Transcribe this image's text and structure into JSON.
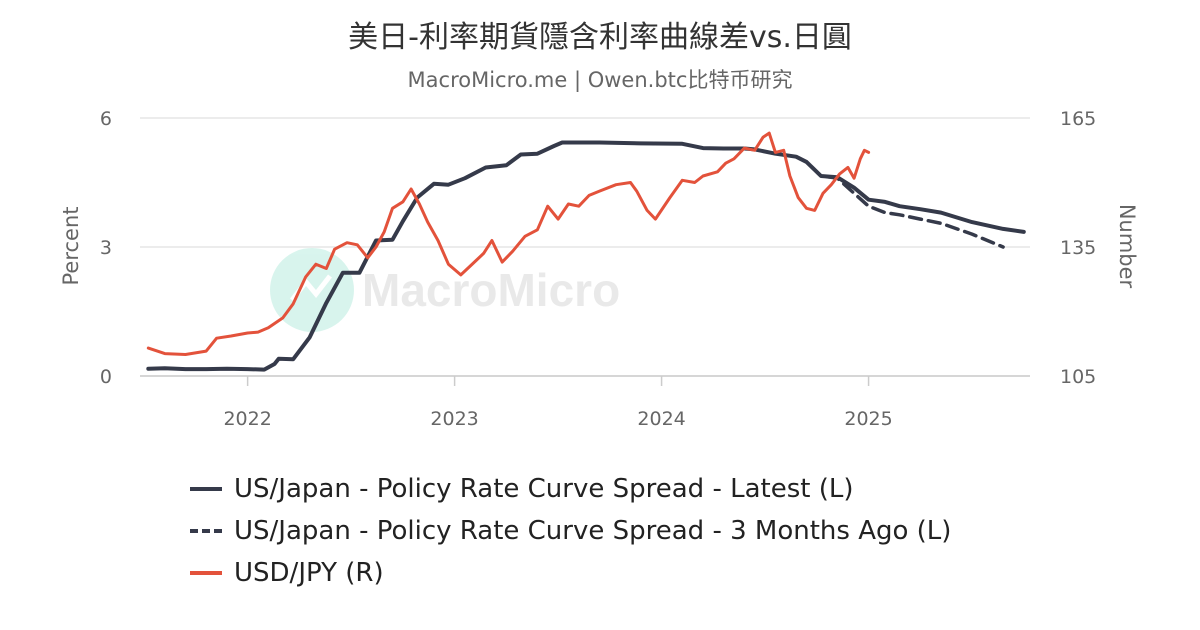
{
  "title": "美日-利率期貨隱含利率曲線差vs.日圓",
  "subtitle": "MacroMicro.me | Owen.btc比特币研究",
  "watermark": "MacroMicro",
  "colors": {
    "latest": "#353a4a",
    "months_ago": "#353a4a",
    "usdjpy": "#e3523b",
    "grid": "#e6e6e6",
    "axis_text": "#666666"
  },
  "legend": [
    {
      "label": "US/Japan - Policy Rate Curve Spread - Latest (L)",
      "style": "solid",
      "color": "#353a4a"
    },
    {
      "label": "US/Japan - Policy Rate Curve Spread - 3 Months Ago (L)",
      "style": "dashed",
      "color": "#353a4a"
    },
    {
      "label": "USD/JPY (R)",
      "style": "solid",
      "color": "#e3523b"
    }
  ],
  "chart_data": {
    "type": "line",
    "ylabel_left": "Percent",
    "ylabel_right": "Number",
    "ylim_left": [
      0,
      6
    ],
    "ylim_right": [
      105,
      165
    ],
    "yticks_left": [
      "0",
      "3",
      "6"
    ],
    "yticks_right": [
      "105",
      "135",
      "165"
    ],
    "xlim": [
      2021.48,
      2025.78
    ],
    "xticks": [
      {
        "x": 2022,
        "label": "2022"
      },
      {
        "x": 2023,
        "label": "2023"
      },
      {
        "x": 2024,
        "label": "2024"
      },
      {
        "x": 2025,
        "label": "2025"
      }
    ],
    "series": [
      {
        "name": "US/Japan - Policy Rate Curve Spread - Latest (L)",
        "axis": "left",
        "x": [
          2021.52,
          2021.6,
          2021.7,
          2021.8,
          2021.9,
          2022.0,
          2022.08,
          2022.13,
          2022.15,
          2022.22,
          2022.3,
          2022.38,
          2022.46,
          2022.54,
          2022.62,
          2022.7,
          2022.75,
          2022.82,
          2022.9,
          2022.97,
          2023.05,
          2023.15,
          2023.25,
          2023.32,
          2023.4,
          2023.48,
          2023.52,
          2023.7,
          2023.9,
          2024.1,
          2024.2,
          2024.3,
          2024.4,
          2024.45,
          2024.55,
          2024.65,
          2024.7,
          2024.77,
          2024.85,
          2024.93,
          2025.0,
          2025.08,
          2025.15,
          2025.25,
          2025.35,
          2025.5,
          2025.65,
          2025.75
        ],
        "values": [
          0.17,
          0.18,
          0.16,
          0.16,
          0.17,
          0.16,
          0.15,
          0.28,
          0.4,
          0.39,
          0.9,
          1.7,
          2.4,
          2.4,
          3.15,
          3.17,
          3.6,
          4.15,
          4.47,
          4.45,
          4.6,
          4.85,
          4.9,
          5.15,
          5.17,
          5.35,
          5.43,
          5.43,
          5.41,
          5.4,
          5.3,
          5.29,
          5.29,
          5.27,
          5.17,
          5.1,
          4.98,
          4.65,
          4.62,
          4.38,
          4.1,
          4.05,
          3.95,
          3.88,
          3.8,
          3.58,
          3.42,
          3.35
        ]
      },
      {
        "name": "US/Japan - Policy Rate Curve Spread - 3 Months Ago (L)",
        "axis": "left",
        "style": "dashed",
        "x": [
          2024.65,
          2024.7,
          2024.77,
          2024.85,
          2024.93,
          2025.0,
          2025.08,
          2025.15,
          2025.25,
          2025.35,
          2025.5,
          2025.65
        ],
        "values": [
          5.1,
          4.98,
          4.65,
          4.6,
          4.25,
          3.95,
          3.8,
          3.75,
          3.65,
          3.55,
          3.3,
          3.0
        ]
      },
      {
        "name": "USD/JPY (R)",
        "axis": "right",
        "x": [
          2021.52,
          2021.6,
          2021.7,
          2021.8,
          2021.85,
          2021.92,
          2022.0,
          2022.05,
          2022.1,
          2022.17,
          2022.22,
          2022.28,
          2022.33,
          2022.38,
          2022.42,
          2022.48,
          2022.53,
          2022.58,
          2022.62,
          2022.66,
          2022.7,
          2022.75,
          2022.79,
          2022.83,
          2022.87,
          2022.92,
          2022.97,
          2023.03,
          2023.08,
          2023.14,
          2023.18,
          2023.23,
          2023.28,
          2023.34,
          2023.4,
          2023.45,
          2023.5,
          2023.55,
          2023.6,
          2023.65,
          2023.7,
          2023.78,
          2023.85,
          2023.88,
          2023.93,
          2023.97,
          2024.04,
          2024.1,
          2024.16,
          2024.2,
          2024.27,
          2024.31,
          2024.35,
          2024.4,
          2024.45,
          2024.49,
          2024.52,
          2024.55,
          2024.59,
          2024.62,
          2024.66,
          2024.7,
          2024.74,
          2024.78,
          2024.82,
          2024.86,
          2024.9,
          2024.93,
          2024.96,
          2024.98,
          2025.0
        ],
        "values": [
          111.5,
          110.2,
          110.0,
          110.8,
          113.8,
          114.3,
          115.0,
          115.2,
          116.2,
          118.5,
          121.8,
          128.0,
          131.0,
          130.0,
          134.5,
          136.0,
          135.5,
          132.5,
          135.0,
          138.5,
          144.0,
          145.5,
          148.5,
          145.0,
          140.8,
          136.5,
          131.0,
          128.5,
          130.8,
          133.5,
          136.5,
          131.5,
          134.0,
          137.5,
          139.0,
          144.5,
          141.5,
          145.0,
          144.5,
          147.0,
          148.0,
          149.5,
          150.0,
          148.0,
          143.5,
          141.5,
          146.5,
          150.5,
          150.0,
          151.5,
          152.5,
          154.5,
          155.5,
          158.0,
          157.5,
          160.5,
          161.5,
          157.0,
          157.5,
          151.5,
          146.5,
          144.0,
          143.5,
          147.5,
          149.5,
          152.0,
          153.5,
          151.0,
          155.5,
          157.5,
          157.0
        ]
      }
    ]
  }
}
